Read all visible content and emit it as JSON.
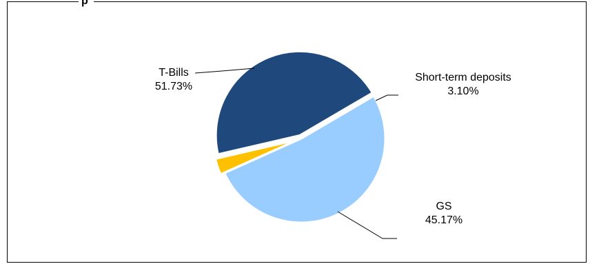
{
  "chart_data": {
    "type": "pie",
    "title": "",
    "title_fragment": "p",
    "legend": "none",
    "grid": false,
    "slices": [
      {
        "name": "T-Bills",
        "value": 51.73,
        "label": "51.73%",
        "color": "#99ccff"
      },
      {
        "name": "Short-term deposits",
        "value": 3.1,
        "label": "3.10%",
        "color": "#ffc000"
      },
      {
        "name": "GS",
        "value": 45.17,
        "label": "45.17%",
        "color": "#1f497d"
      }
    ]
  }
}
